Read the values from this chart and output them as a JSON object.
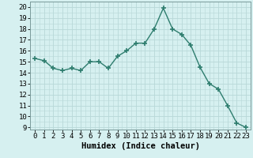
{
  "x": [
    0,
    1,
    2,
    3,
    4,
    5,
    6,
    7,
    8,
    9,
    10,
    11,
    12,
    13,
    14,
    15,
    16,
    17,
    18,
    19,
    20,
    21,
    22,
    23
  ],
  "y": [
    15.3,
    15.1,
    14.4,
    14.2,
    14.4,
    14.2,
    15.0,
    15.0,
    14.4,
    15.5,
    16.0,
    16.7,
    16.7,
    18.0,
    19.9,
    18.0,
    17.5,
    16.5,
    14.5,
    13.0,
    12.5,
    11.0,
    9.4,
    9.0
  ],
  "line_color": "#2e7d6e",
  "marker": "+",
  "marker_size": 5,
  "marker_linewidth": 1.2,
  "bg_color": "#d6f0f0",
  "grid_color": "#b8d8d8",
  "xlabel": "Humidex (Indice chaleur)",
  "xlim": [
    -0.5,
    23.5
  ],
  "ylim": [
    8.8,
    20.5
  ],
  "yticks": [
    9,
    10,
    11,
    12,
    13,
    14,
    15,
    16,
    17,
    18,
    19,
    20
  ],
  "xticks": [
    0,
    1,
    2,
    3,
    4,
    5,
    6,
    7,
    8,
    9,
    10,
    11,
    12,
    13,
    14,
    15,
    16,
    17,
    18,
    19,
    20,
    21,
    22,
    23
  ],
  "xlabel_fontsize": 7.5,
  "tick_fontsize": 6.5,
  "linewidth": 1.0
}
